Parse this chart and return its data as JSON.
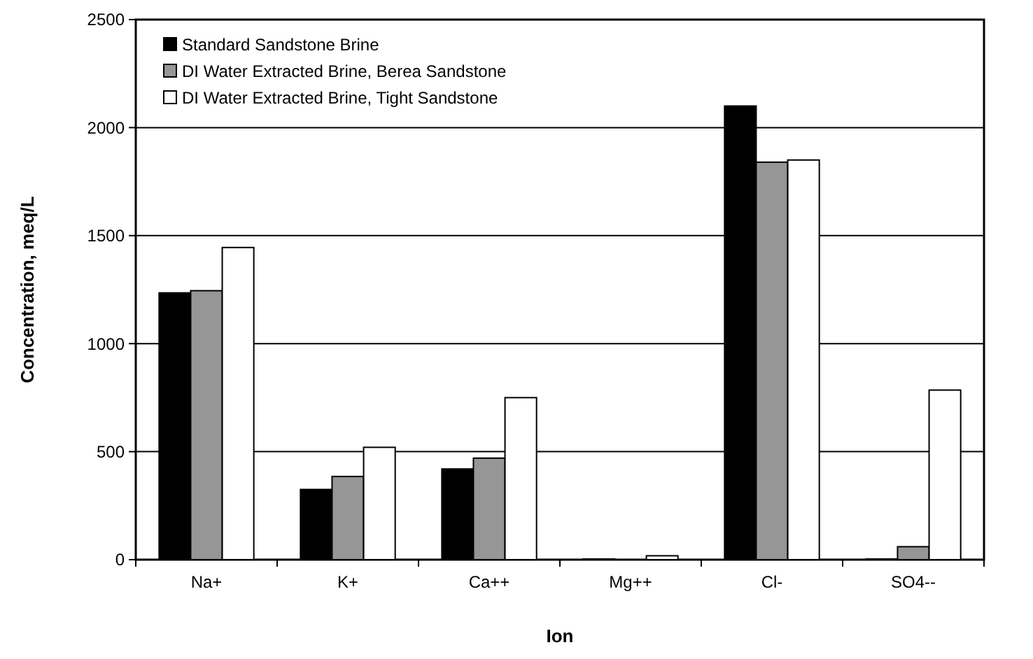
{
  "chart_data": {
    "type": "bar",
    "xlabel": "Ion",
    "ylabel": "Concentration, meq/L",
    "categories": [
      "Na+",
      "K+",
      "Ca++",
      "Mg++",
      "Cl-",
      "SO4--"
    ],
    "series": [
      {
        "name": "Standard Sandstone Brine",
        "color": "#000000",
        "values": [
          1235,
          325,
          420,
          3,
          2100,
          3
        ]
      },
      {
        "name": "DI Water Extracted Brine, Berea Sandstone",
        "color": "#969696",
        "values": [
          1245,
          385,
          470,
          null,
          1840,
          60
        ]
      },
      {
        "name": "DI Water Extracted Brine, Tight Sandstone",
        "color": "#ffffff",
        "values": [
          1445,
          520,
          750,
          18,
          1850,
          785
        ]
      }
    ],
    "ylim": [
      0,
      2500
    ],
    "yticks": [
      0,
      500,
      1000,
      1500,
      2000,
      2500
    ],
    "grid": "y",
    "legend": "top left"
  }
}
